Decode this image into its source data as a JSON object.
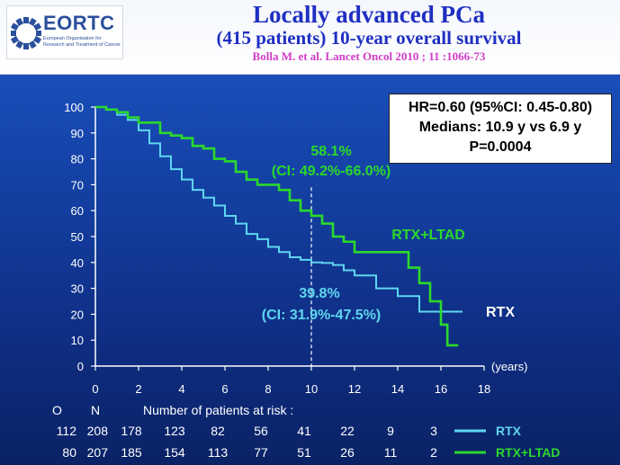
{
  "header": {
    "logo_text": "EORTC",
    "logo_subtext": "European Organisation for Research and Treatment of Cancer",
    "title": "Locally advanced PCa",
    "subtitle": "(415 patients) 10-year overall survival",
    "citation": "Bolla M. et al. Lancet Oncol 2010 ; 11 :1066-73"
  },
  "stats_box": {
    "line1": "HR=0.60 (95%CI: 0.45-0.80)",
    "line2": "Medians: 10.9 y vs 6.9 y",
    "line3": "P=0.0004"
  },
  "annotations": {
    "ltad_pct": "58.1%",
    "ltad_ci": "(CI: 49.2%-66.0%)",
    "rtx_pct": "39.8%",
    "rtx_ci": "(CI: 31.9%-47.5%)",
    "ltad_label": "RTX+LTAD",
    "rtx_label": "RTX"
  },
  "risk_table": {
    "header_o": "O",
    "header_n": "N",
    "header_title": "Number of patients at risk :",
    "rows": [
      {
        "o": "112",
        "n": "208",
        "values": [
          "178",
          "123",
          "82",
          "56",
          "41",
          "22",
          "9",
          "3"
        ],
        "legend": "RTX"
      },
      {
        "o": "80",
        "n": "207",
        "values": [
          "185",
          "154",
          "113",
          "77",
          "51",
          "26",
          "11",
          "2"
        ],
        "legend": "RTX+LTAD"
      }
    ]
  },
  "colors": {
    "rtx": "#5fd6f0",
    "ltad": "#2bd92b",
    "background": "#1543a8"
  },
  "chart_data": {
    "type": "line",
    "title": "Locally advanced PCa",
    "xlabel": "(years)",
    "ylabel": "",
    "xlim": [
      0,
      18
    ],
    "ylim": [
      0,
      100
    ],
    "xticks": [
      0,
      2,
      4,
      6,
      8,
      10,
      12,
      14,
      16,
      18
    ],
    "yticks": [
      0,
      10,
      20,
      30,
      40,
      50,
      60,
      70,
      80,
      90,
      100
    ],
    "reference_line_x": 10,
    "series": [
      {
        "name": "RTX",
        "step": true,
        "x": [
          0,
          0.5,
          1,
          1.5,
          2,
          2.5,
          3,
          3.5,
          4,
          4.5,
          5,
          5.5,
          6,
          6.5,
          7,
          7.5,
          8,
          8.5,
          9,
          9.5,
          10,
          10.5,
          11,
          11.5,
          12,
          13,
          13.5,
          14,
          15,
          16,
          17
        ],
        "y": [
          100,
          99,
          97,
          95,
          91,
          86,
          81,
          76,
          72,
          68,
          65,
          62,
          58,
          55,
          51,
          49,
          46,
          44,
          42,
          41,
          40,
          39.8,
          39,
          37,
          35,
          30,
          30,
          27,
          21,
          21,
          21
        ]
      },
      {
        "name": "RTX+LTAD",
        "step": true,
        "x": [
          0,
          0.5,
          1,
          1.5,
          2,
          3,
          3.5,
          4,
          4.5,
          5,
          5.5,
          6,
          6.5,
          7,
          7.5,
          8,
          8.5,
          9,
          9.5,
          10,
          10.5,
          11,
          11.5,
          12,
          14,
          14.5,
          15,
          15.5,
          16,
          16.3,
          16.8
        ],
        "y": [
          100,
          99,
          98,
          96,
          94,
          90,
          89,
          88,
          85,
          84,
          80,
          79,
          75,
          72,
          70,
          70,
          68,
          64,
          60,
          58,
          55,
          50,
          48,
          44,
          44,
          38,
          32,
          25,
          16,
          8,
          8
        ]
      }
    ]
  }
}
